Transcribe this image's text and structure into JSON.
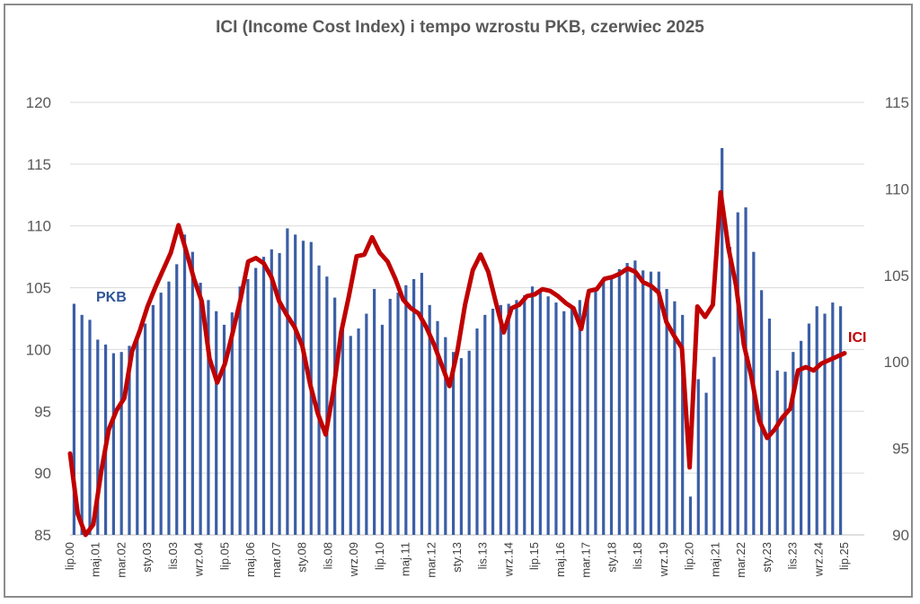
{
  "chart_data": {
    "type": "bar+line",
    "title": "ICI (Income Cost Index) i tempo wzrostu PKB, czerwiec 2025",
    "colors": {
      "bars": "#3b5ea6",
      "line": "#c00000",
      "pkb_label": "#2e5597",
      "ici_label": "#c00000",
      "grid": "#d9d9d9"
    },
    "y_left": {
      "min": 85,
      "max": 120,
      "ticks": [
        "85",
        "90",
        "95",
        "100",
        "105",
        "110",
        "115",
        "120"
      ]
    },
    "y_right": {
      "min": 90,
      "max": 115,
      "ticks": [
        "90",
        "95",
        "100",
        "105",
        "110",
        "115"
      ]
    },
    "x_ticks": [
      "lip.00",
      "maj.01",
      "mar.02",
      "sty.03",
      "lis.03",
      "wrz.04",
      "lip.05",
      "maj.06",
      "mar.07",
      "sty.08",
      "lis.08",
      "wrz.09",
      "lip.10",
      "maj.11",
      "mar.12",
      "sty.13",
      "lis.13",
      "wrz.14",
      "lip.15",
      "maj.16",
      "mar.17",
      "sty.18",
      "lis.18",
      "wrz.19",
      "lip.20",
      "maj.21",
      "mar.22",
      "sty.23",
      "lis.23",
      "wrz.24",
      "lip.25"
    ],
    "series": [
      {
        "name": "PKB",
        "axis": "left",
        "type": "bar",
        "values": [
          103.7,
          102.8,
          102.4,
          100.8,
          100.4,
          99.7,
          99.8,
          100.3,
          101.0,
          102.1,
          103.6,
          104.6,
          105.5,
          106.9,
          109.3,
          107.9,
          105.4,
          104.0,
          103.1,
          102.0,
          103.0,
          105.1,
          105.7,
          106.6,
          107.5,
          108.1,
          107.8,
          109.8,
          109.3,
          108.8,
          108.7,
          106.8,
          105.9,
          104.2,
          101.7,
          101.1,
          101.7,
          102.9,
          104.9,
          102.0,
          104.1,
          104.6,
          105.2,
          105.7,
          106.2,
          103.6,
          102.3,
          101.0,
          99.8,
          99.3,
          99.9,
          101.7,
          102.8,
          103.3,
          103.6,
          103.7,
          104.0,
          104.4,
          105.1,
          104.8,
          104.3,
          103.8,
          103.1,
          103.3,
          104.0,
          104.5,
          105.0,
          105.5,
          105.9,
          106.5,
          107.0,
          107.2,
          106.4,
          106.3,
          106.3,
          104.9,
          103.9,
          102.8,
          88.1,
          97.6,
          96.5,
          99.4,
          116.3,
          108.3,
          111.1,
          111.5,
          107.9,
          104.8,
          102.5,
          98.3,
          98.2,
          99.8,
          100.7,
          102.1,
          103.5,
          102.9,
          103.8,
          103.5
        ]
      },
      {
        "name": "ICI",
        "axis": "right",
        "type": "line",
        "values": [
          94.7,
          91.2,
          90.0,
          90.6,
          93.6,
          96.1,
          97.2,
          97.9,
          100.6,
          101.8,
          103.2,
          104.3,
          105.3,
          106.3,
          107.9,
          106.4,
          104.8,
          103.5,
          100.2,
          98.8,
          99.9,
          101.7,
          103.6,
          105.8,
          106.0,
          105.7,
          104.9,
          103.5,
          102.7,
          102.0,
          100.9,
          98.7,
          97.0,
          95.8,
          98.3,
          101.7,
          103.8,
          106.1,
          106.2,
          107.2,
          106.3,
          105.8,
          104.8,
          103.6,
          103.1,
          102.8,
          102.0,
          101.0,
          99.8,
          98.6,
          100.6,
          103.3,
          105.3,
          106.2,
          105.2,
          103.4,
          101.7,
          103.1,
          103.3,
          103.8,
          103.9,
          104.2,
          104.1,
          103.8,
          103.4,
          103.1,
          101.9,
          104.1,
          104.2,
          104.8,
          104.9,
          105.1,
          105.4,
          105.2,
          104.6,
          104.4,
          104.0,
          102.3,
          101.5,
          100.8,
          93.9,
          103.2,
          102.6,
          103.3,
          109.8,
          106.6,
          104.4,
          101.0,
          99.1,
          96.6,
          95.6,
          96.1,
          96.8,
          97.3,
          99.5,
          99.7,
          99.5,
          99.9,
          100.1,
          100.3,
          100.5
        ]
      }
    ]
  },
  "labels": {
    "pkb": "PKB",
    "ici": "ICI"
  }
}
